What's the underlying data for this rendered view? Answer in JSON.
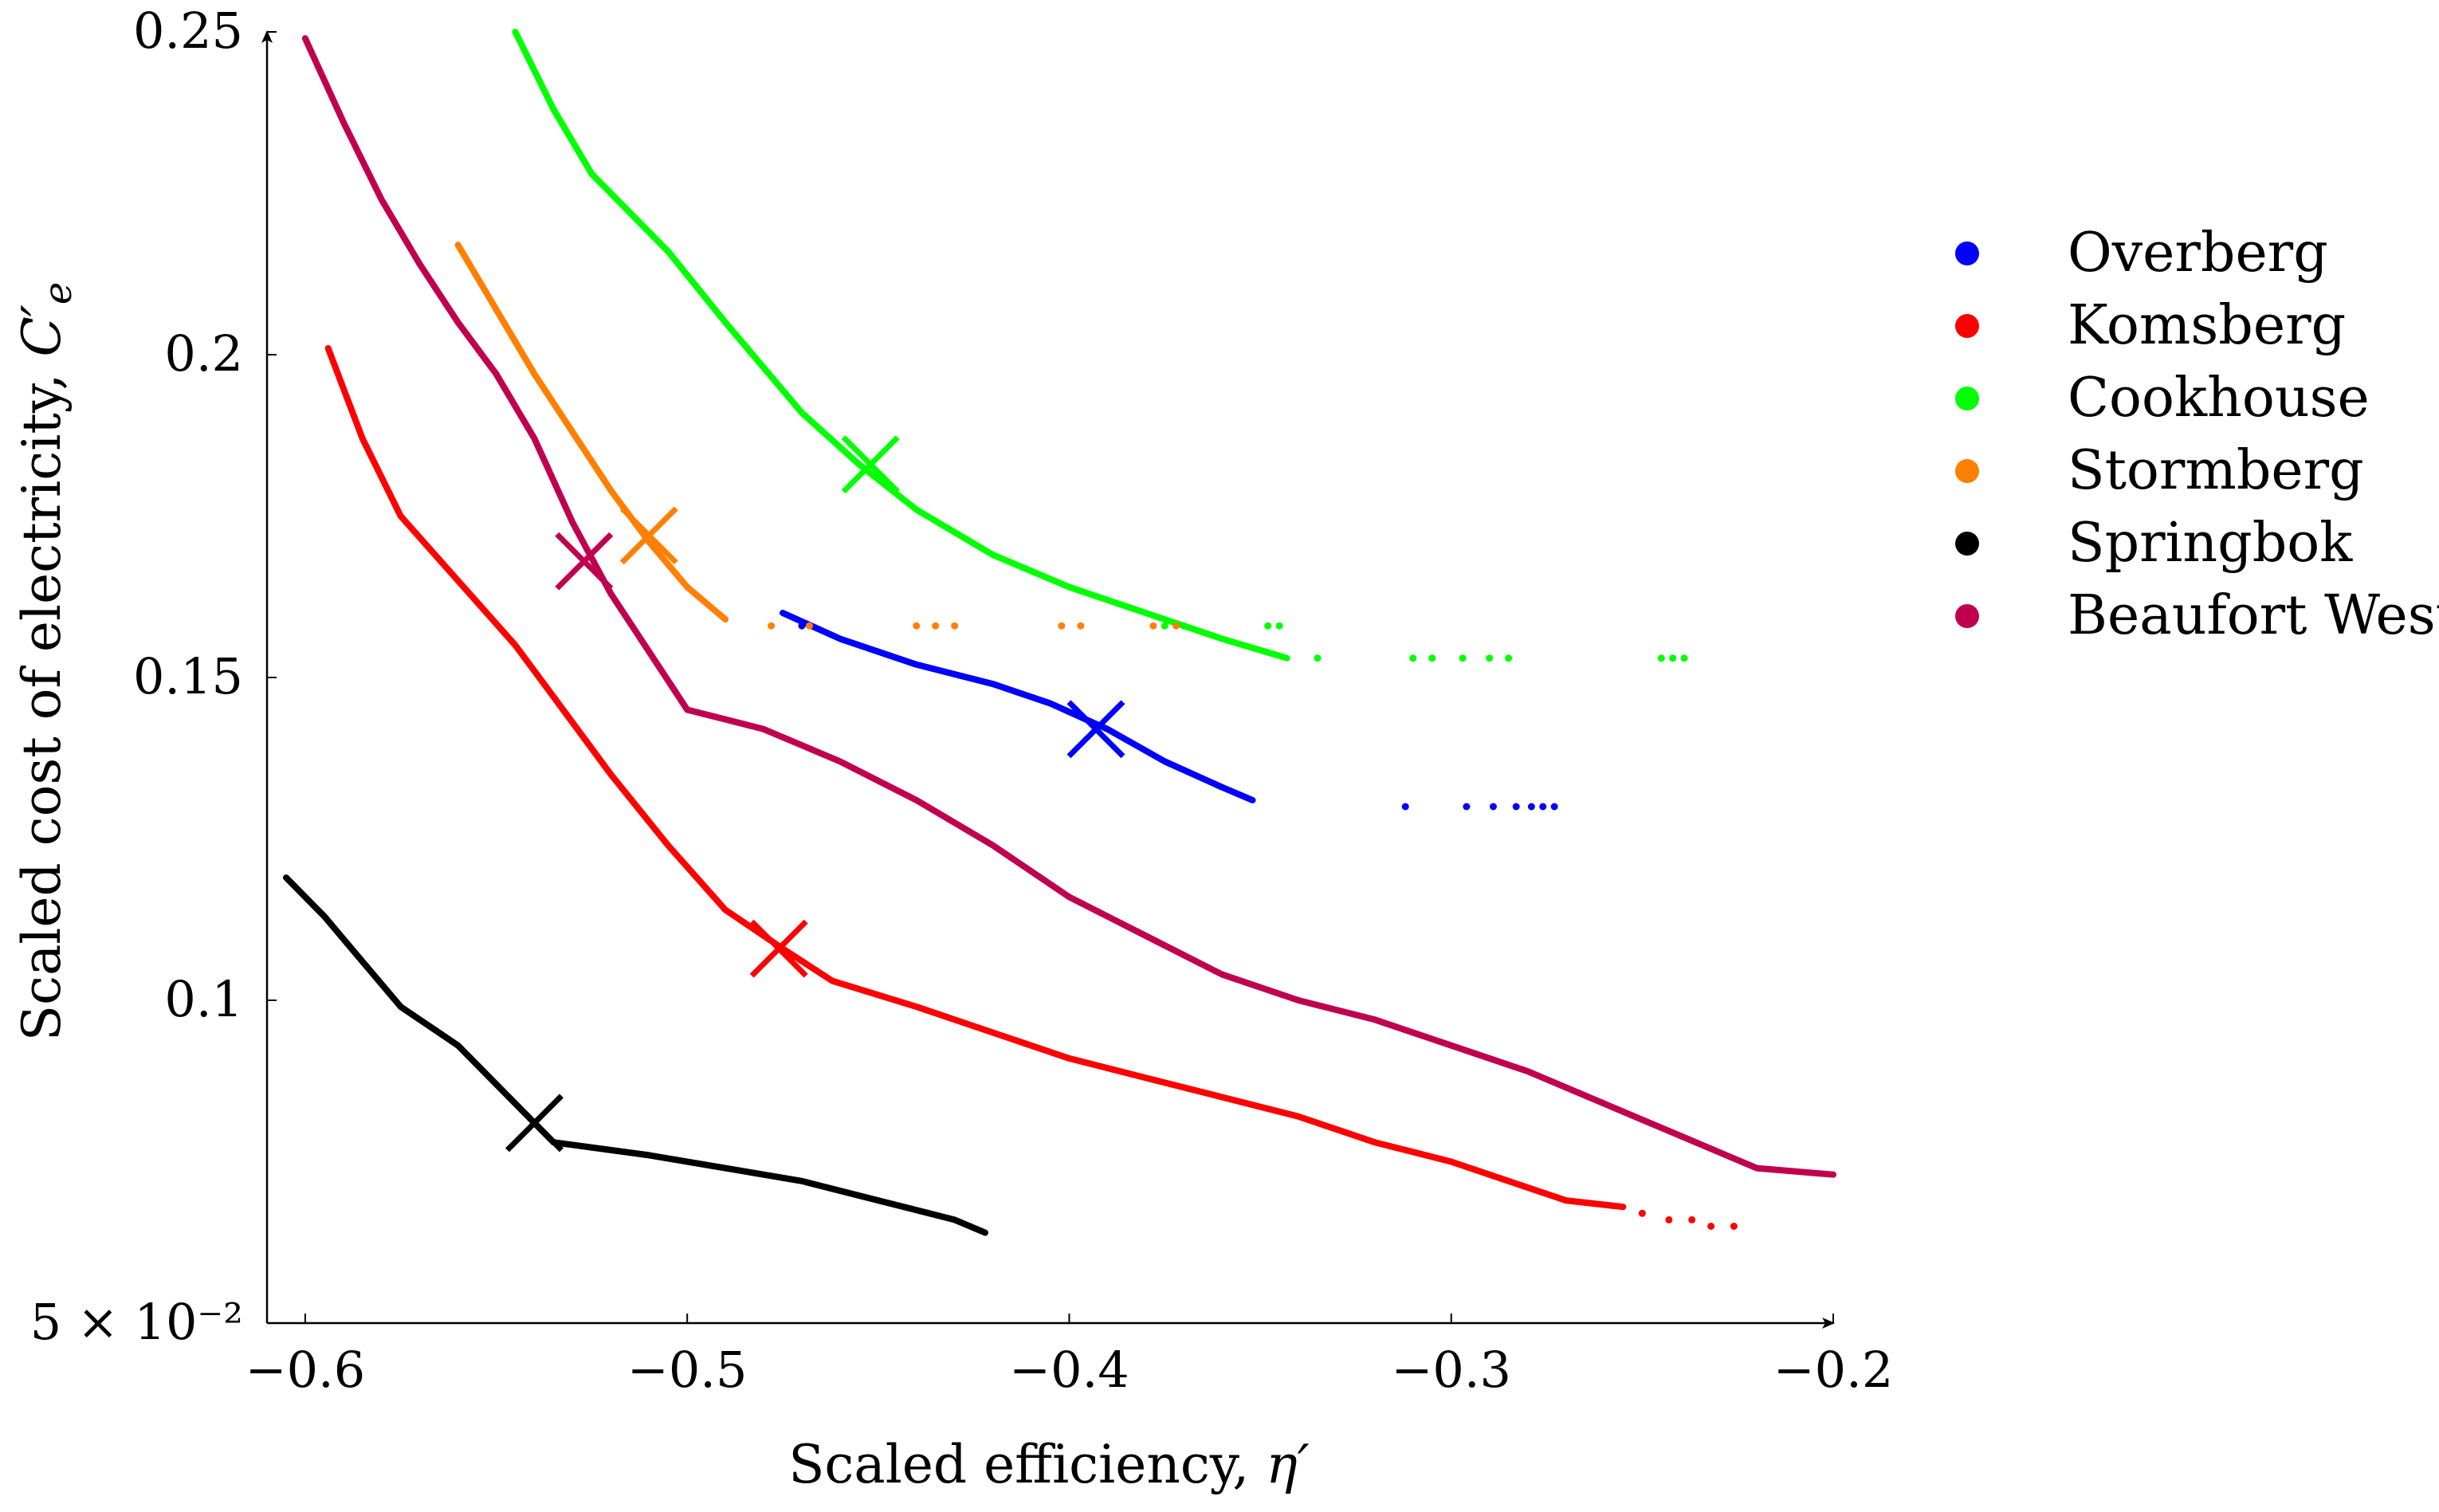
{
  "chart_data": {
    "type": "scatter",
    "title": "",
    "xlabel_prefix": "Scaled efficiency, ",
    "xlabel_symbol": "η′",
    "ylabel_prefix": "Scaled cost of electricity, ",
    "ylabel_symbol": "C′",
    "ylabel_subscript": "e",
    "xlim": [
      -0.61,
      -0.2
    ],
    "ylim": [
      0.05,
      0.25
    ],
    "x_ticks": [
      -0.6,
      -0.5,
      -0.4,
      -0.3,
      -0.2
    ],
    "x_tick_labels": [
      "−0.6",
      "−0.5",
      "−0.4",
      "−0.3",
      "−0.2"
    ],
    "y_ticks": [
      0.05,
      0.1,
      0.15,
      0.2,
      0.25
    ],
    "y_tick_labels": [
      "5 × 10⁻²",
      "0.1",
      "0.15",
      "0.2",
      "0.25"
    ],
    "legend_position": "right",
    "series": [
      {
        "name": "Overberg",
        "color": "#0000ff",
        "points": [
          [
            -0.475,
            0.16
          ],
          [
            -0.46,
            0.156
          ],
          [
            -0.44,
            0.152
          ],
          [
            -0.42,
            0.149
          ],
          [
            -0.405,
            0.146
          ],
          [
            -0.39,
            0.142
          ],
          [
            -0.375,
            0.137
          ],
          [
            -0.36,
            0.133
          ],
          [
            -0.352,
            0.131
          ]
        ],
        "scatter": [
          [
            -0.47,
            0.158
          ],
          [
            -0.312,
            0.13
          ],
          [
            -0.296,
            0.13
          ],
          [
            -0.289,
            0.13
          ],
          [
            -0.283,
            0.13
          ],
          [
            -0.279,
            0.13
          ],
          [
            -0.276,
            0.13
          ],
          [
            -0.273,
            0.13
          ]
        ],
        "marker": [
          -0.393,
          0.142
        ]
      },
      {
        "name": "Komsberg",
        "color": "#ff0000",
        "points": [
          [
            -0.594,
            0.201
          ],
          [
            -0.585,
            0.187
          ],
          [
            -0.575,
            0.175
          ],
          [
            -0.56,
            0.165
          ],
          [
            -0.545,
            0.155
          ],
          [
            -0.535,
            0.147
          ],
          [
            -0.52,
            0.135
          ],
          [
            -0.505,
            0.124
          ],
          [
            -0.49,
            0.114
          ],
          [
            -0.475,
            0.108
          ],
          [
            -0.462,
            0.103
          ],
          [
            -0.44,
            0.099
          ],
          [
            -0.42,
            0.095
          ],
          [
            -0.4,
            0.091
          ],
          [
            -0.38,
            0.088
          ],
          [
            -0.36,
            0.085
          ],
          [
            -0.34,
            0.082
          ],
          [
            -0.32,
            0.078
          ],
          [
            -0.3,
            0.075
          ],
          [
            -0.285,
            0.072
          ],
          [
            -0.27,
            0.069
          ],
          [
            -0.255,
            0.068
          ]
        ],
        "scatter": [
          [
            -0.25,
            0.067
          ],
          [
            -0.243,
            0.066
          ],
          [
            -0.237,
            0.066
          ],
          [
            -0.232,
            0.065
          ],
          [
            -0.226,
            0.065
          ]
        ],
        "marker": [
          -0.476,
          0.108
        ]
      },
      {
        "name": "Cookhouse",
        "color": "#00ff00",
        "points": [
          [
            -0.545,
            0.25
          ],
          [
            -0.535,
            0.238
          ],
          [
            -0.525,
            0.228
          ],
          [
            -0.505,
            0.216
          ],
          [
            -0.49,
            0.205
          ],
          [
            -0.47,
            0.191
          ],
          [
            -0.455,
            0.183
          ],
          [
            -0.44,
            0.176
          ],
          [
            -0.42,
            0.169
          ],
          [
            -0.4,
            0.164
          ],
          [
            -0.38,
            0.16
          ],
          [
            -0.36,
            0.156
          ],
          [
            -0.343,
            0.153
          ]
        ],
        "scatter": [
          [
            -0.375,
            0.158
          ],
          [
            -0.37,
            0.158
          ],
          [
            -0.348,
            0.158
          ],
          [
            -0.345,
            0.158
          ],
          [
            -0.335,
            0.153
          ],
          [
            -0.31,
            0.153
          ],
          [
            -0.305,
            0.153
          ],
          [
            -0.297,
            0.153
          ],
          [
            -0.29,
            0.153
          ],
          [
            -0.285,
            0.153
          ],
          [
            -0.245,
            0.153
          ],
          [
            -0.242,
            0.153
          ],
          [
            -0.239,
            0.153
          ]
        ],
        "marker": [
          -0.452,
          0.183
        ]
      },
      {
        "name": "Stormberg",
        "color": "#ff8000",
        "points": [
          [
            -0.56,
            0.217
          ],
          [
            -0.55,
            0.207
          ],
          [
            -0.54,
            0.197
          ],
          [
            -0.53,
            0.188
          ],
          [
            -0.52,
            0.179
          ],
          [
            -0.51,
            0.171
          ],
          [
            -0.5,
            0.164
          ],
          [
            -0.49,
            0.159
          ]
        ],
        "scatter": [
          [
            -0.478,
            0.158
          ],
          [
            -0.468,
            0.158
          ],
          [
            -0.44,
            0.158
          ],
          [
            -0.435,
            0.158
          ],
          [
            -0.43,
            0.158
          ],
          [
            -0.402,
            0.158
          ],
          [
            -0.397,
            0.158
          ],
          [
            -0.378,
            0.158
          ],
          [
            -0.372,
            0.158
          ]
        ],
        "marker": [
          -0.51,
          0.172
        ]
      },
      {
        "name": "Springbok",
        "color": "#000000",
        "points": [
          [
            -0.605,
            0.119
          ],
          [
            -0.595,
            0.113
          ],
          [
            -0.585,
            0.106
          ],
          [
            -0.575,
            0.099
          ],
          [
            -0.56,
            0.093
          ],
          [
            -0.545,
            0.084
          ],
          [
            -0.535,
            0.078
          ],
          [
            -0.51,
            0.076
          ],
          [
            -0.49,
            0.074
          ],
          [
            -0.47,
            0.072
          ],
          [
            -0.45,
            0.069
          ],
          [
            -0.43,
            0.066
          ],
          [
            -0.422,
            0.064
          ]
        ],
        "scatter": [],
        "marker": [
          -0.54,
          0.081
        ]
      },
      {
        "name": "Beaufort West",
        "color": "#c0004f",
        "points": [
          [
            -0.6,
            0.249
          ],
          [
            -0.59,
            0.236
          ],
          [
            -0.58,
            0.224
          ],
          [
            -0.57,
            0.214
          ],
          [
            -0.56,
            0.205
          ],
          [
            -0.55,
            0.197
          ],
          [
            -0.54,
            0.187
          ],
          [
            -0.53,
            0.174
          ],
          [
            -0.52,
            0.163
          ],
          [
            -0.51,
            0.154
          ],
          [
            -0.5,
            0.145
          ],
          [
            -0.48,
            0.142
          ],
          [
            -0.46,
            0.137
          ],
          [
            -0.44,
            0.131
          ],
          [
            -0.42,
            0.124
          ],
          [
            -0.4,
            0.116
          ],
          [
            -0.38,
            0.11
          ],
          [
            -0.36,
            0.104
          ],
          [
            -0.34,
            0.1
          ],
          [
            -0.32,
            0.097
          ],
          [
            -0.3,
            0.093
          ],
          [
            -0.28,
            0.089
          ],
          [
            -0.26,
            0.084
          ],
          [
            -0.24,
            0.079
          ],
          [
            -0.22,
            0.074
          ],
          [
            -0.2,
            0.073
          ]
        ],
        "scatter": [],
        "marker": [
          -0.527,
          0.168
        ]
      }
    ]
  }
}
